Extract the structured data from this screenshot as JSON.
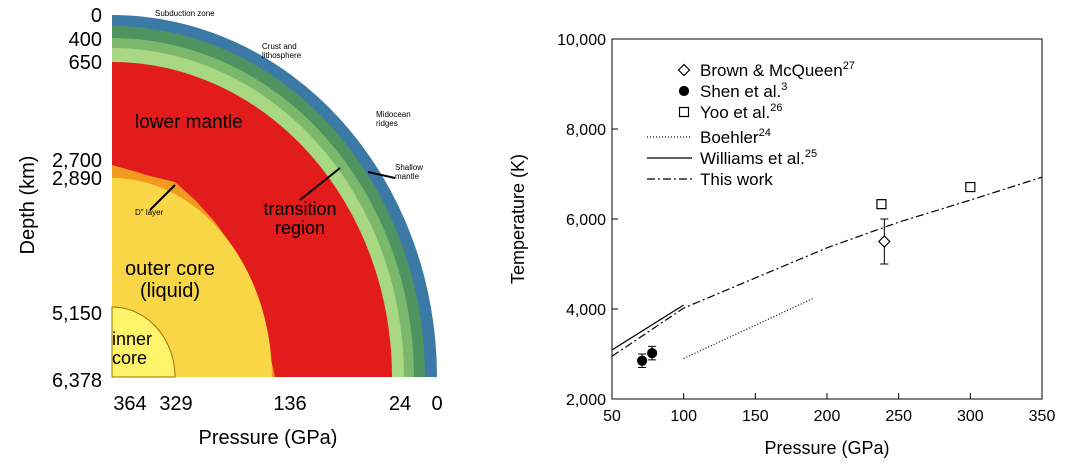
{
  "earth_diagram": {
    "depth_axis": {
      "title": "Depth (km)",
      "ticks": [
        "0",
        "400",
        "650",
        "2,700",
        "2,890",
        "5,150",
        "6,378"
      ]
    },
    "pressure_axis": {
      "title": "Pressure (GPa)",
      "ticks": [
        "364",
        "329",
        "136",
        "24",
        "0"
      ]
    },
    "labels": {
      "subduction": "Subduction zone",
      "crust": "Crust and lithosphere",
      "ridges": "Midocean ridges",
      "shallow": "Shallow mantle",
      "lower_mantle": "lower mantle",
      "transition": "transition region",
      "d_layer": "D\" layer",
      "outer_core": "outer core (liquid)",
      "inner_core": "inner core"
    }
  },
  "chart_data": {
    "type": "line",
    "x_label": "Pressure (GPa)",
    "y_label": "Temperature (K)",
    "xlim": [
      50,
      350
    ],
    "xticks": [
      50,
      100,
      150,
      200,
      250,
      300,
      350
    ],
    "ylim": [
      2000,
      10000
    ],
    "yticks": [
      {
        "value": 2000,
        "label": "2,000"
      },
      {
        "value": 4000,
        "label": "4,000"
      },
      {
        "value": 6000,
        "label": "6,000"
      },
      {
        "value": 8000,
        "label": "8,000"
      },
      {
        "value": 10000,
        "label": "10,000"
      }
    ],
    "series": [
      {
        "name": "Brown & McQueen",
        "ref": "27",
        "type": "scatter",
        "marker": "diamond",
        "x": [
          240
        ],
        "values": [
          5500
        ],
        "errors": [
          500
        ]
      },
      {
        "name": "Shen et al.",
        "ref": "3",
        "type": "scatter",
        "marker": "circle",
        "x": [
          71,
          78
        ],
        "values": [
          2850,
          3020
        ],
        "errors": [
          150,
          150
        ]
      },
      {
        "name": "Yoo et al.",
        "ref": "26",
        "type": "scatter",
        "marker": "square",
        "x": [
          238,
          300
        ],
        "values": [
          6330,
          6710
        ]
      },
      {
        "name": "Boehler",
        "ref": "24",
        "type": "line",
        "dash": "1 2",
        "x": [
          100,
          190
        ],
        "values": [
          2900,
          4230
        ]
      },
      {
        "name": "Williams et al.",
        "ref": "25",
        "type": "line",
        "dash": "none",
        "x": [
          50,
          100
        ],
        "values": [
          3090,
          4090
        ]
      },
      {
        "name": "This work",
        "type": "line",
        "dash": "8 3 2 3",
        "x": [
          50,
          100,
          150,
          200,
          250,
          300,
          350
        ],
        "values": [
          2950,
          4020,
          4690,
          5360,
          5930,
          6420,
          6930
        ]
      }
    ]
  }
}
